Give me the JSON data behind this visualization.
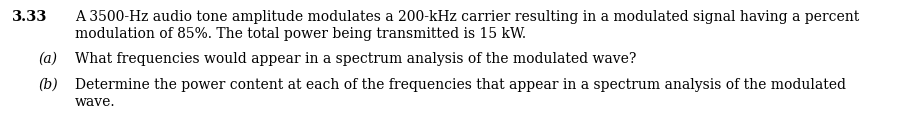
{
  "problem_number": "3.33",
  "main_line1": "A 3500-Hz audio tone amplitude modulates a 200-kHz carrier resulting in a modulated signal having a percent",
  "main_line2": "modulation of 85%. The total power being transmitted is 15 kW.",
  "part_a_label": "(a)",
  "part_a_text": "What frequencies would appear in a spectrum analysis of the modulated wave?",
  "part_b_label": "(b)",
  "part_b_line1": "Determine the power content at each of the frequencies that appear in a spectrum analysis of the modulated",
  "part_b_line2": "wave.",
  "font_size_number": 10.5,
  "font_size_body": 10.0,
  "text_color": "#000000",
  "background_color": "#ffffff",
  "fig_width": 9.17,
  "fig_height": 1.35,
  "dpi": 100
}
